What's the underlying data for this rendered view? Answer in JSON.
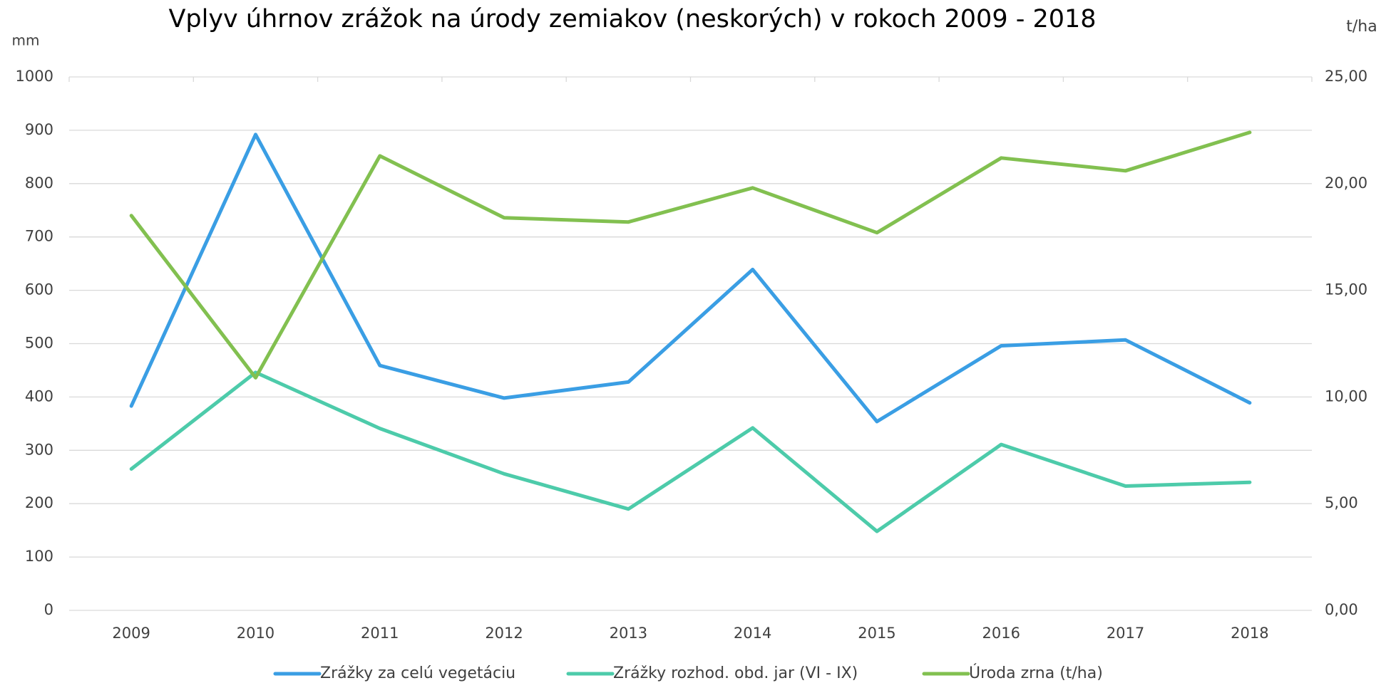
{
  "chart_data": {
    "type": "line",
    "title": "Vplyv úhrnov zrážok na úrody zemiakov (neskorých) v rokoch 2009 - 2018",
    "y_label": "mm",
    "y2_label": "t/ha",
    "categories": [
      "2009",
      "2010",
      "2011",
      "2012",
      "2013",
      "2014",
      "2015",
      "2016",
      "2017",
      "2018"
    ],
    "series": [
      {
        "name": "Zrážky za celú vegetáciu",
        "color": "#3a9ee4",
        "values": [
          383,
          892,
          459,
          398,
          428,
          639,
          354,
          496,
          507,
          389
        ]
      },
      {
        "name": "Zrážky rozhod. obd. jar (VI - IX)",
        "color": "#4dcbaa",
        "values": [
          265,
          446,
          341,
          256,
          190,
          342,
          148,
          311,
          233,
          240
        ]
      },
      {
        "name": "Úroda zrna (t/ha)",
        "color": "#82c050",
        "axis": "y2",
        "values": [
          18.5,
          10.9,
          21.3,
          18.4,
          18.2,
          19.8,
          17.7,
          21.2,
          20.6,
          22.4
        ]
      }
    ],
    "ylim": [
      0,
      1000
    ],
    "yticks": [
      0,
      100,
      200,
      300,
      400,
      500,
      600,
      700,
      800,
      900,
      1000
    ],
    "y2lim": [
      0,
      25
    ],
    "y2ticks": [
      {
        "value": 0,
        "label": "0,00"
      },
      {
        "value": 5,
        "label": "5,00"
      },
      {
        "value": 10,
        "label": "10,00"
      },
      {
        "value": 15,
        "label": "15,00"
      },
      {
        "value": 20,
        "label": "20,00"
      },
      {
        "value": 25,
        "label": "25,00"
      }
    ],
    "grid": true,
    "legend": "bottom"
  }
}
